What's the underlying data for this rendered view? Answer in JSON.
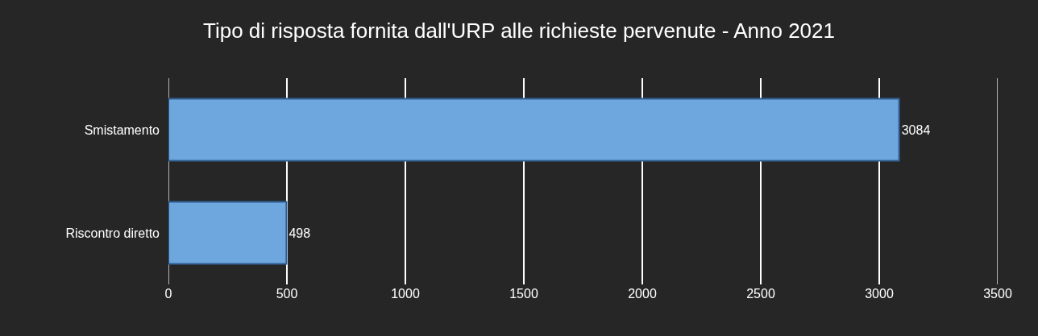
{
  "chart_data": {
    "type": "bar",
    "orientation": "horizontal",
    "title": "Tipo di risposta fornita dall'URP alle richieste pervenute - Anno 2021",
    "categories": [
      "Smistamento",
      "Riscontro diretto"
    ],
    "values": [
      3084,
      498
    ],
    "color": "#6ea6de",
    "xlim": [
      0,
      3500
    ],
    "xticks": [
      0,
      500,
      1000,
      1500,
      2000,
      2500,
      3000,
      3500
    ],
    "grid": "x",
    "data_labels": true
  }
}
